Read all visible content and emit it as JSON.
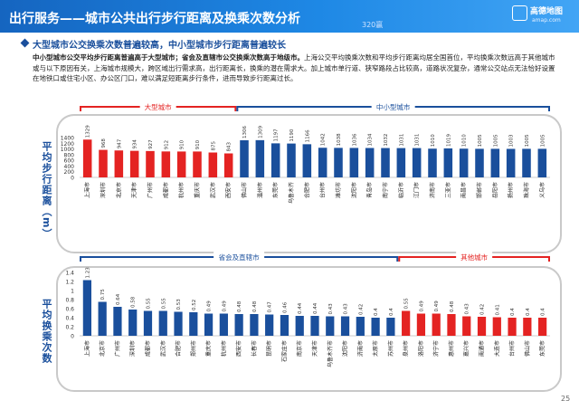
{
  "header": {
    "title": "出行服务——城市公共出行步行距离及换乘次数分析",
    "badge": "320赢",
    "logo_text": "高德地图",
    "logo_url": "amap.com"
  },
  "subtitle": "大型城市公交换乘次数普遍较高，中小型城市步行距离普遍较长",
  "description": {
    "lead": "中小型城市公交平均步行距离普遍高于大型城市；省会及直辖市公交换乘次数高于地级市。",
    "body": "上海公交平均换乘次数和平均步行距离均居全国首位，平均换乘次数远高于其他城市或与以下原因有关，上海城市规模大，跨区域出行需求高，出行距离长，换乘的潜在需求大。加上城市单行道、狭窄路段占比较高，道路状况复杂，通常公交站点无法恰好设置在地铁口或住宅小区、办公区门口，难以满足短距离步行条件，进而导致步行距离过长。"
  },
  "page_number": "25",
  "colors": {
    "red": "#e42322",
    "blue": "#1a4f9c",
    "accent": "#1e88e5"
  },
  "chart_data": [
    {
      "type": "bar",
      "title": "",
      "ylabel": "平均步行距离（m）",
      "ylim": [
        0,
        1400
      ],
      "yticks": [
        0,
        200,
        400,
        600,
        800,
        1000,
        1200,
        1400
      ],
      "categories": [
        "上海市",
        "深圳市",
        "北京市",
        "天津市",
        "广州市",
        "成都市",
        "杭州市",
        "重庆市",
        "武汉市",
        "西安市",
        "佛山市",
        "温州市",
        "东莞市",
        "乌鲁木齐",
        "合肥市",
        "台州市",
        "潍坊市",
        "沈阳市",
        "青岛市",
        "南宁市",
        "临沂市",
        "江门市",
        "济南市",
        "三亚市",
        "南昌市",
        "邯郸市",
        "岳阳市",
        "扬州市",
        "珠海市",
        "义乌市"
      ],
      "value_labels": [
        "1329",
        "968",
        "947",
        "934",
        "927",
        "912",
        "910",
        "910",
        "875",
        "843",
        "1306",
        "1309",
        "1197",
        "1190",
        "1166",
        "1042",
        "1038",
        "1036",
        "1034",
        "1032",
        "1031",
        "1031",
        "1010",
        "1019",
        "1010",
        "1005",
        "1005",
        "1003",
        "1005",
        "1005"
      ],
      "values": [
        1329,
        968,
        947,
        934,
        927,
        912,
        910,
        910,
        875,
        843,
        1306,
        1309,
        1197,
        1190,
        1166,
        1042,
        1038,
        1036,
        1034,
        1032,
        1031,
        1031,
        1010,
        1019,
        1010,
        1005,
        1005,
        1003,
        1005,
        1005
      ],
      "series_colors": [
        "red",
        "red",
        "red",
        "red",
        "red",
        "red",
        "red",
        "red",
        "red",
        "red",
        "blue",
        "blue",
        "blue",
        "blue",
        "blue",
        "blue",
        "blue",
        "blue",
        "blue",
        "blue",
        "blue",
        "blue",
        "blue",
        "blue",
        "blue",
        "blue",
        "blue",
        "blue",
        "blue",
        "blue"
      ],
      "groups": [
        {
          "label": "大型城市",
          "color": "red",
          "from": 0,
          "to": 9
        },
        {
          "label": "中小型城市",
          "color": "blue",
          "from": 10,
          "to": 29
        }
      ]
    },
    {
      "type": "bar",
      "title": "",
      "ylabel": "平均换乘次数",
      "ylim": [
        0,
        1.4
      ],
      "yticks": [
        0,
        0.2,
        0.4,
        0.6,
        0.8,
        1.0,
        1.2,
        1.4
      ],
      "ytick_labels": [
        "0",
        "0.2",
        "0.4",
        "0.6",
        "0.8",
        "1",
        "1.2",
        "1.4"
      ],
      "categories": [
        "上海市",
        "北京市",
        "广州市",
        "深圳市",
        "成都市",
        "武汉市",
        "合肥市",
        "郑州市",
        "重庆市",
        "杭州市",
        "西安市",
        "长春市",
        "昆明市",
        "石家庄市",
        "南京市",
        "天津市",
        "乌鲁木齐市",
        "沈阳市",
        "济南市",
        "太原市",
        "苏州市",
        "泉州市",
        "洛阳市",
        "济宁市",
        "惠州市",
        "嘉兴市",
        "南通市",
        "大连市",
        "台州市",
        "佛山市",
        "东莞市"
      ],
      "value_labels": [
        "1.23",
        "0.75",
        "0.64",
        "0.58",
        "0.55",
        "0.55",
        "0.53",
        "0.52",
        "0.49",
        "0.49",
        "0.48",
        "0.48",
        "0.47",
        "0.46",
        "0.44",
        "0.44",
        "0.43",
        "0.43",
        "0.42",
        "0.4",
        "0.4",
        "0.55",
        "0.49",
        "0.49",
        "0.48",
        "0.43",
        "0.42",
        "0.41",
        "0.4",
        "0.4",
        "0.4"
      ],
      "values": [
        1.23,
        0.75,
        0.64,
        0.58,
        0.55,
        0.55,
        0.53,
        0.52,
        0.49,
        0.49,
        0.48,
        0.48,
        0.47,
        0.46,
        0.44,
        0.44,
        0.43,
        0.43,
        0.42,
        0.4,
        0.4,
        0.55,
        0.49,
        0.49,
        0.48,
        0.43,
        0.42,
        0.41,
        0.4,
        0.4,
        0.4
      ],
      "series_colors": [
        "blue",
        "blue",
        "blue",
        "blue",
        "blue",
        "blue",
        "blue",
        "blue",
        "blue",
        "blue",
        "blue",
        "blue",
        "blue",
        "blue",
        "blue",
        "blue",
        "blue",
        "blue",
        "blue",
        "blue",
        "blue",
        "red",
        "red",
        "red",
        "red",
        "red",
        "red",
        "red",
        "red",
        "red",
        "red"
      ],
      "groups": [
        {
          "label": "省会及直辖市",
          "color": "blue",
          "from": 0,
          "to": 20
        },
        {
          "label": "其他城市",
          "color": "red",
          "from": 21,
          "to": 30
        }
      ]
    }
  ]
}
